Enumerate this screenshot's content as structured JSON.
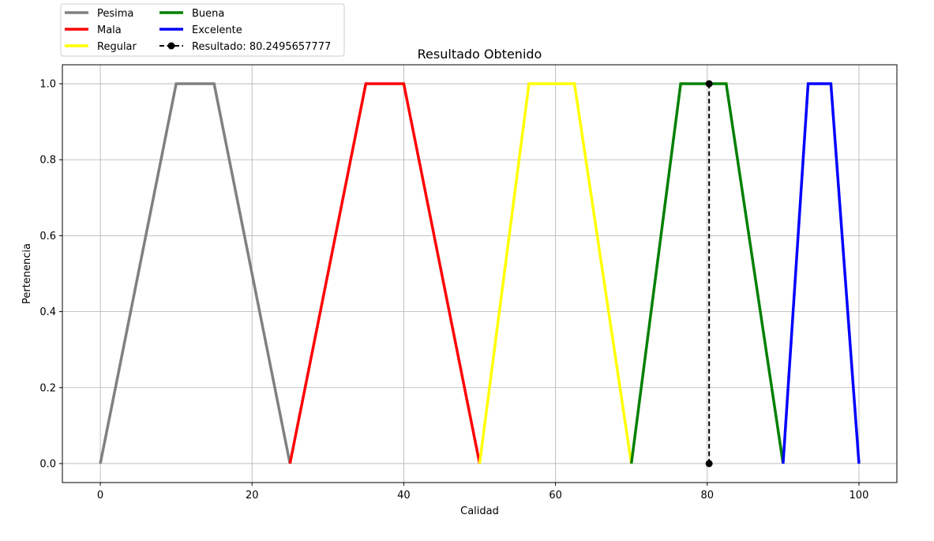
{
  "chart_data": {
    "type": "line",
    "title": "Resultado Obtenido",
    "xlabel": "Calidad",
    "ylabel": "Pertenencia",
    "xlim": [
      -5,
      105
    ],
    "ylim": [
      -0.05,
      1.05
    ],
    "xticks": [
      0,
      20,
      40,
      60,
      80,
      100
    ],
    "yticks": [
      0.0,
      0.2,
      0.4,
      0.6,
      0.8,
      1.0
    ],
    "xtick_labels": [
      "0",
      "20",
      "40",
      "60",
      "80",
      "100"
    ],
    "ytick_labels": [
      "0.0",
      "0.2",
      "0.4",
      "0.6",
      "0.8",
      "1.0"
    ],
    "grid": true,
    "legend_position": "above-top-left",
    "series": [
      {
        "name": "Pesima",
        "color": "#808080",
        "x": [
          0,
          10,
          15,
          25
        ],
        "y": [
          0,
          1,
          1,
          0
        ]
      },
      {
        "name": "Mala",
        "color": "#ff0000",
        "x": [
          25,
          35,
          40,
          50
        ],
        "y": [
          0,
          1,
          1,
          0
        ]
      },
      {
        "name": "Regular",
        "color": "#ffff00",
        "x": [
          50,
          56.5,
          62.5,
          70
        ],
        "y": [
          0,
          1,
          1,
          0
        ]
      },
      {
        "name": "Buena",
        "color": "#008000",
        "x": [
          70,
          76.5,
          82.5,
          90
        ],
        "y": [
          0,
          1,
          1,
          0
        ]
      },
      {
        "name": "Excelente",
        "color": "#0000ff",
        "x": [
          90,
          93.3,
          96.3,
          100
        ],
        "y": [
          0,
          1,
          1,
          0
        ]
      },
      {
        "name": "Resultado: 80.2495657777",
        "color": "#000000",
        "style": "dashed-marker",
        "x": [
          80.2495657777,
          80.2495657777
        ],
        "y": [
          0,
          1
        ]
      }
    ]
  }
}
